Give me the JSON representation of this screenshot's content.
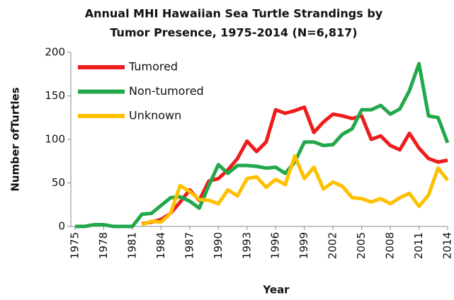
{
  "chart_data": {
    "type": "line",
    "title": [
      "Annual MHI Hawaiian Sea Turtle Strandings by",
      "Tumor Presence, 1975-2014 (N=6,817)"
    ],
    "x_label": "Year",
    "y_label": "Number ofTurtles",
    "x": [
      1975,
      1976,
      1977,
      1978,
      1979,
      1980,
      1981,
      1982,
      1983,
      1984,
      1985,
      1986,
      1987,
      1988,
      1989,
      1990,
      1991,
      1992,
      1993,
      1994,
      1995,
      1996,
      1997,
      1998,
      1999,
      2000,
      2001,
      2002,
      2003,
      2004,
      2005,
      2006,
      2007,
      2008,
      2009,
      2010,
      2011,
      2012,
      2013,
      2014
    ],
    "xlim": [
      1975,
      2014
    ],
    "xticks": [
      1975,
      1978,
      1981,
      1984,
      1987,
      1990,
      1993,
      1996,
      1999,
      2002,
      2005,
      2008,
      2011,
      2014
    ],
    "ylim": [
      0,
      200
    ],
    "yticks": [
      0,
      50,
      100,
      150,
      200
    ],
    "grid": false,
    "legend": "upper left",
    "series": [
      {
        "name": "Tumored",
        "color": "#ee1c1c",
        "values": [
          null,
          null,
          null,
          null,
          null,
          null,
          null,
          3,
          5,
          8,
          15,
          28,
          42,
          30,
          52,
          55,
          65,
          78,
          98,
          86,
          97,
          134,
          130,
          133,
          137,
          108,
          120,
          129,
          127,
          124,
          127,
          100,
          104,
          93,
          88,
          107,
          90,
          78,
          74,
          76
        ]
      },
      {
        "name": "Non-tumored",
        "color": "#22a84a",
        "values": [
          0,
          0,
          2,
          2,
          0,
          0,
          0,
          14,
          15,
          24,
          33,
          34,
          29,
          21,
          47,
          71,
          61,
          70,
          70,
          69,
          67,
          68,
          61,
          74,
          97,
          97,
          93,
          94,
          106,
          112,
          134,
          134,
          139,
          129,
          135,
          156,
          187,
          127,
          125,
          96
        ]
      },
      {
        "name": "Unknown",
        "color": "#ffc000",
        "values": [
          null,
          null,
          null,
          null,
          null,
          null,
          null,
          2,
          6,
          5,
          15,
          47,
          40,
          31,
          30,
          26,
          42,
          35,
          55,
          57,
          45,
          54,
          48,
          81,
          55,
          68,
          43,
          51,
          46,
          33,
          32,
          28,
          32,
          26,
          33,
          38,
          23,
          36,
          67,
          53
        ]
      }
    ]
  }
}
